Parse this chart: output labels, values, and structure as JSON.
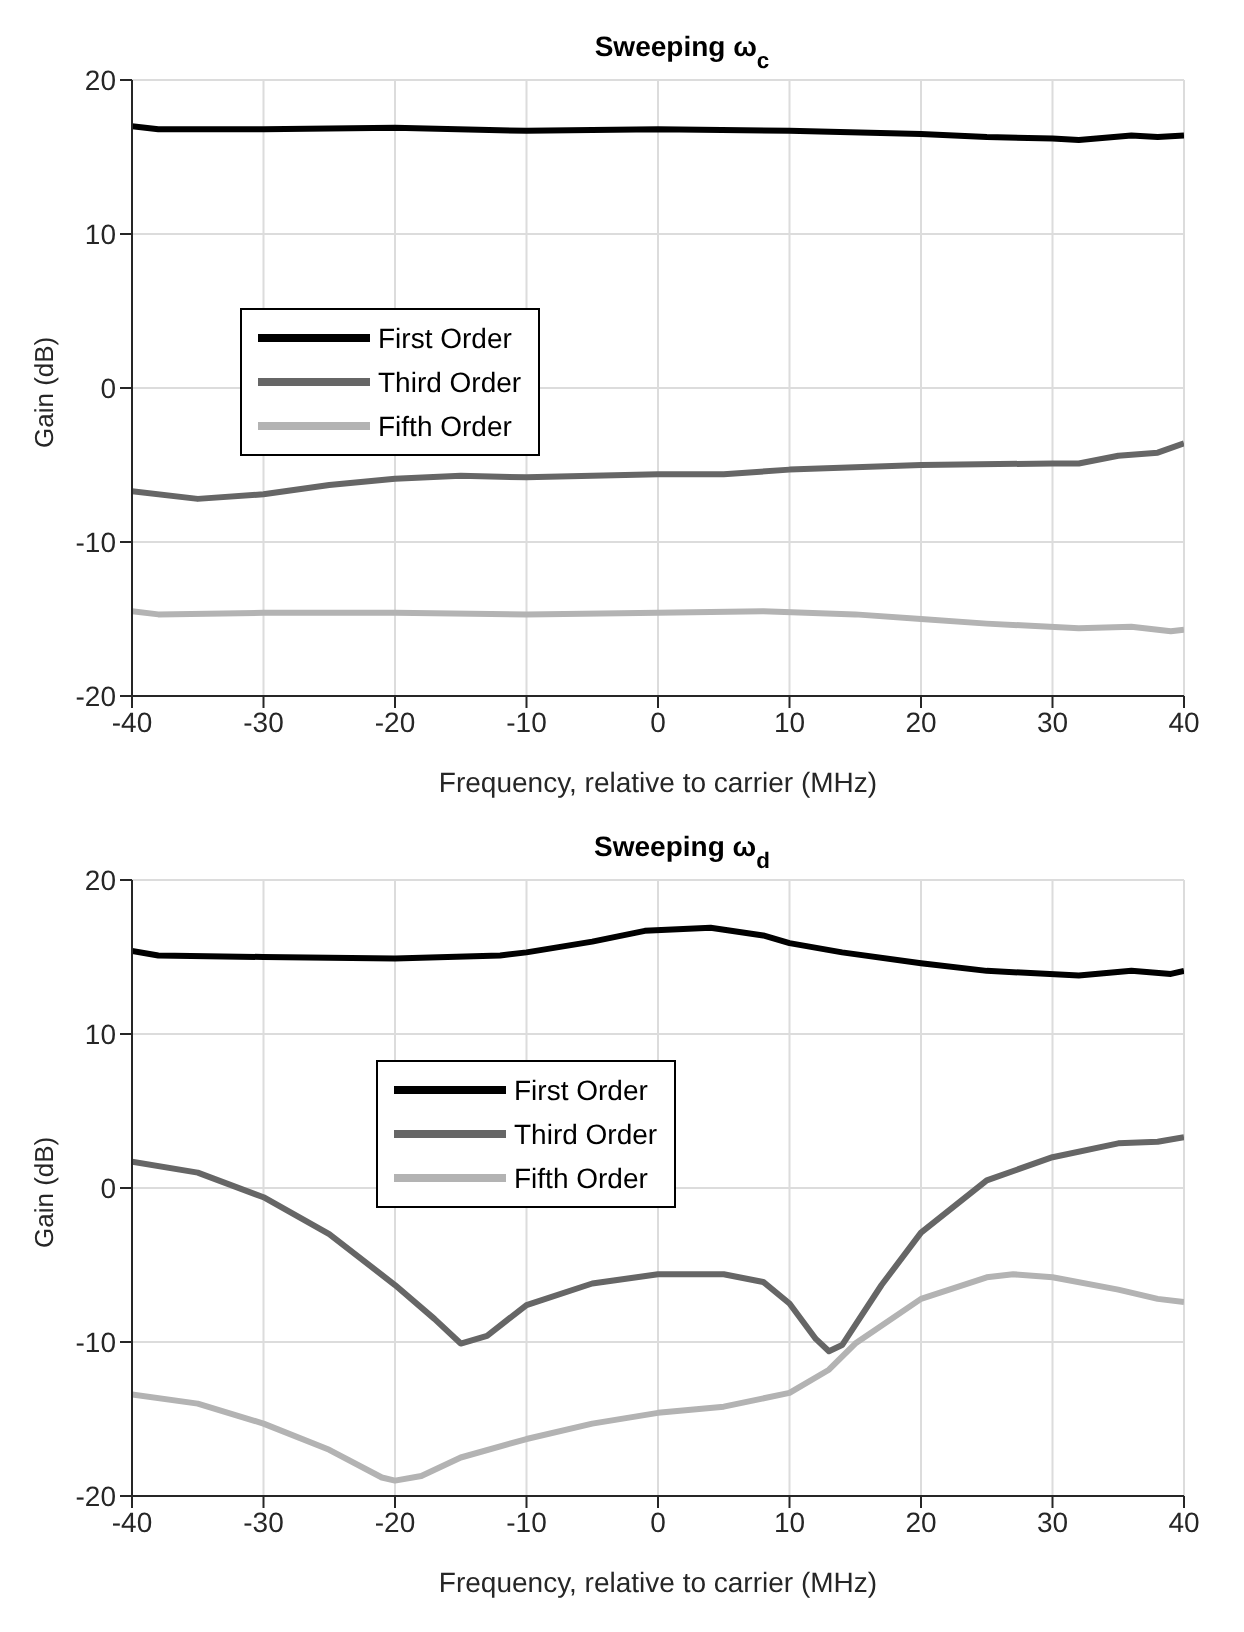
{
  "chart_data": [
    {
      "type": "line",
      "title": "Sweeping ω$_{c}$",
      "xlabel": "Frequency, relative to carrier (MHz)",
      "ylabel": "Gain (dB)",
      "xlim": [
        -40,
        40
      ],
      "ylim": [
        -20,
        20
      ],
      "xticks": [
        -40,
        -30,
        -20,
        -10,
        0,
        10,
        20,
        30,
        40
      ],
      "yticks": [
        -20,
        -10,
        0,
        10,
        20
      ],
      "grid": true,
      "legend": "left",
      "series": [
        {
          "name": "First Order",
          "color": "#000000",
          "x": [
            -40,
            -38,
            -30,
            -20,
            -10,
            0,
            10,
            20,
            25,
            30,
            32,
            36,
            38,
            40
          ],
          "values": [
            17.0,
            16.8,
            16.8,
            16.9,
            16.7,
            16.8,
            16.7,
            16.5,
            16.3,
            16.2,
            16.1,
            16.4,
            16.3,
            16.4
          ]
        },
        {
          "name": "Third Order",
          "color": "#666666",
          "x": [
            -40,
            -35,
            -30,
            -25,
            -20,
            -15,
            -10,
            0,
            5,
            10,
            20,
            30,
            32,
            35,
            38,
            40
          ],
          "values": [
            -6.7,
            -7.2,
            -6.9,
            -6.3,
            -5.9,
            -5.7,
            -5.8,
            -5.6,
            -5.6,
            -5.3,
            -5.0,
            -4.9,
            -4.9,
            -4.4,
            -4.2,
            -3.6
          ]
        },
        {
          "name": "Fifth Order",
          "color": "#b3b3b3",
          "x": [
            -40,
            -38,
            -30,
            -20,
            -10,
            0,
            8,
            15,
            20,
            25,
            32,
            36,
            39,
            40
          ],
          "values": [
            -14.5,
            -14.7,
            -14.6,
            -14.6,
            -14.7,
            -14.6,
            -14.5,
            -14.7,
            -15.0,
            -15.3,
            -15.6,
            -15.5,
            -15.8,
            -15.7
          ]
        }
      ]
    },
    {
      "type": "line",
      "title": "Sweeping ω$_{d}$",
      "xlabel": "Frequency, relative to carrier (MHz)",
      "ylabel": "Gain (dB)",
      "xlim": [
        -40,
        40
      ],
      "ylim": [
        -20,
        20
      ],
      "xticks": [
        -40,
        -30,
        -20,
        -10,
        0,
        10,
        20,
        30,
        40
      ],
      "yticks": [
        -20,
        -10,
        0,
        10,
        20
      ],
      "grid": true,
      "legend": "top",
      "series": [
        {
          "name": "First Order",
          "color": "#000000",
          "x": [
            -40,
            -38,
            -30,
            -20,
            -12,
            -10,
            -5,
            -1,
            4,
            8,
            10,
            14,
            20,
            25,
            32,
            36,
            39,
            40
          ],
          "values": [
            15.4,
            15.1,
            15.0,
            14.9,
            15.1,
            15.3,
            16.0,
            16.7,
            16.9,
            16.4,
            15.9,
            15.3,
            14.6,
            14.1,
            13.8,
            14.1,
            13.9,
            14.1
          ]
        },
        {
          "name": "Third Order",
          "color": "#666666",
          "x": [
            -40,
            -35,
            -30,
            -25,
            -20,
            -17,
            -15,
            -13,
            -10,
            -5,
            0,
            5,
            8,
            10,
            12,
            13,
            14,
            17,
            20,
            25,
            30,
            35,
            38,
            40
          ],
          "values": [
            1.7,
            1.0,
            -0.6,
            -3.0,
            -6.3,
            -8.5,
            -10.1,
            -9.6,
            -7.6,
            -6.2,
            -5.6,
            -5.6,
            -6.1,
            -7.5,
            -9.8,
            -10.6,
            -10.2,
            -6.3,
            -2.9,
            0.5,
            2.0,
            2.9,
            3.0,
            3.3
          ]
        },
        {
          "name": "Fifth Order",
          "color": "#b3b3b3",
          "x": [
            -40,
            -35,
            -30,
            -25,
            -21,
            -20,
            -18,
            -15,
            -10,
            -5,
            0,
            5,
            10,
            13,
            15,
            20,
            25,
            27,
            30,
            35,
            38,
            40
          ],
          "values": [
            -13.4,
            -14.0,
            -15.3,
            -17.0,
            -18.8,
            -19.0,
            -18.7,
            -17.5,
            -16.3,
            -15.3,
            -14.6,
            -14.2,
            -13.3,
            -11.8,
            -10.1,
            -7.2,
            -5.8,
            -5.6,
            -5.8,
            -6.6,
            -7.2,
            -7.4
          ]
        }
      ]
    }
  ]
}
